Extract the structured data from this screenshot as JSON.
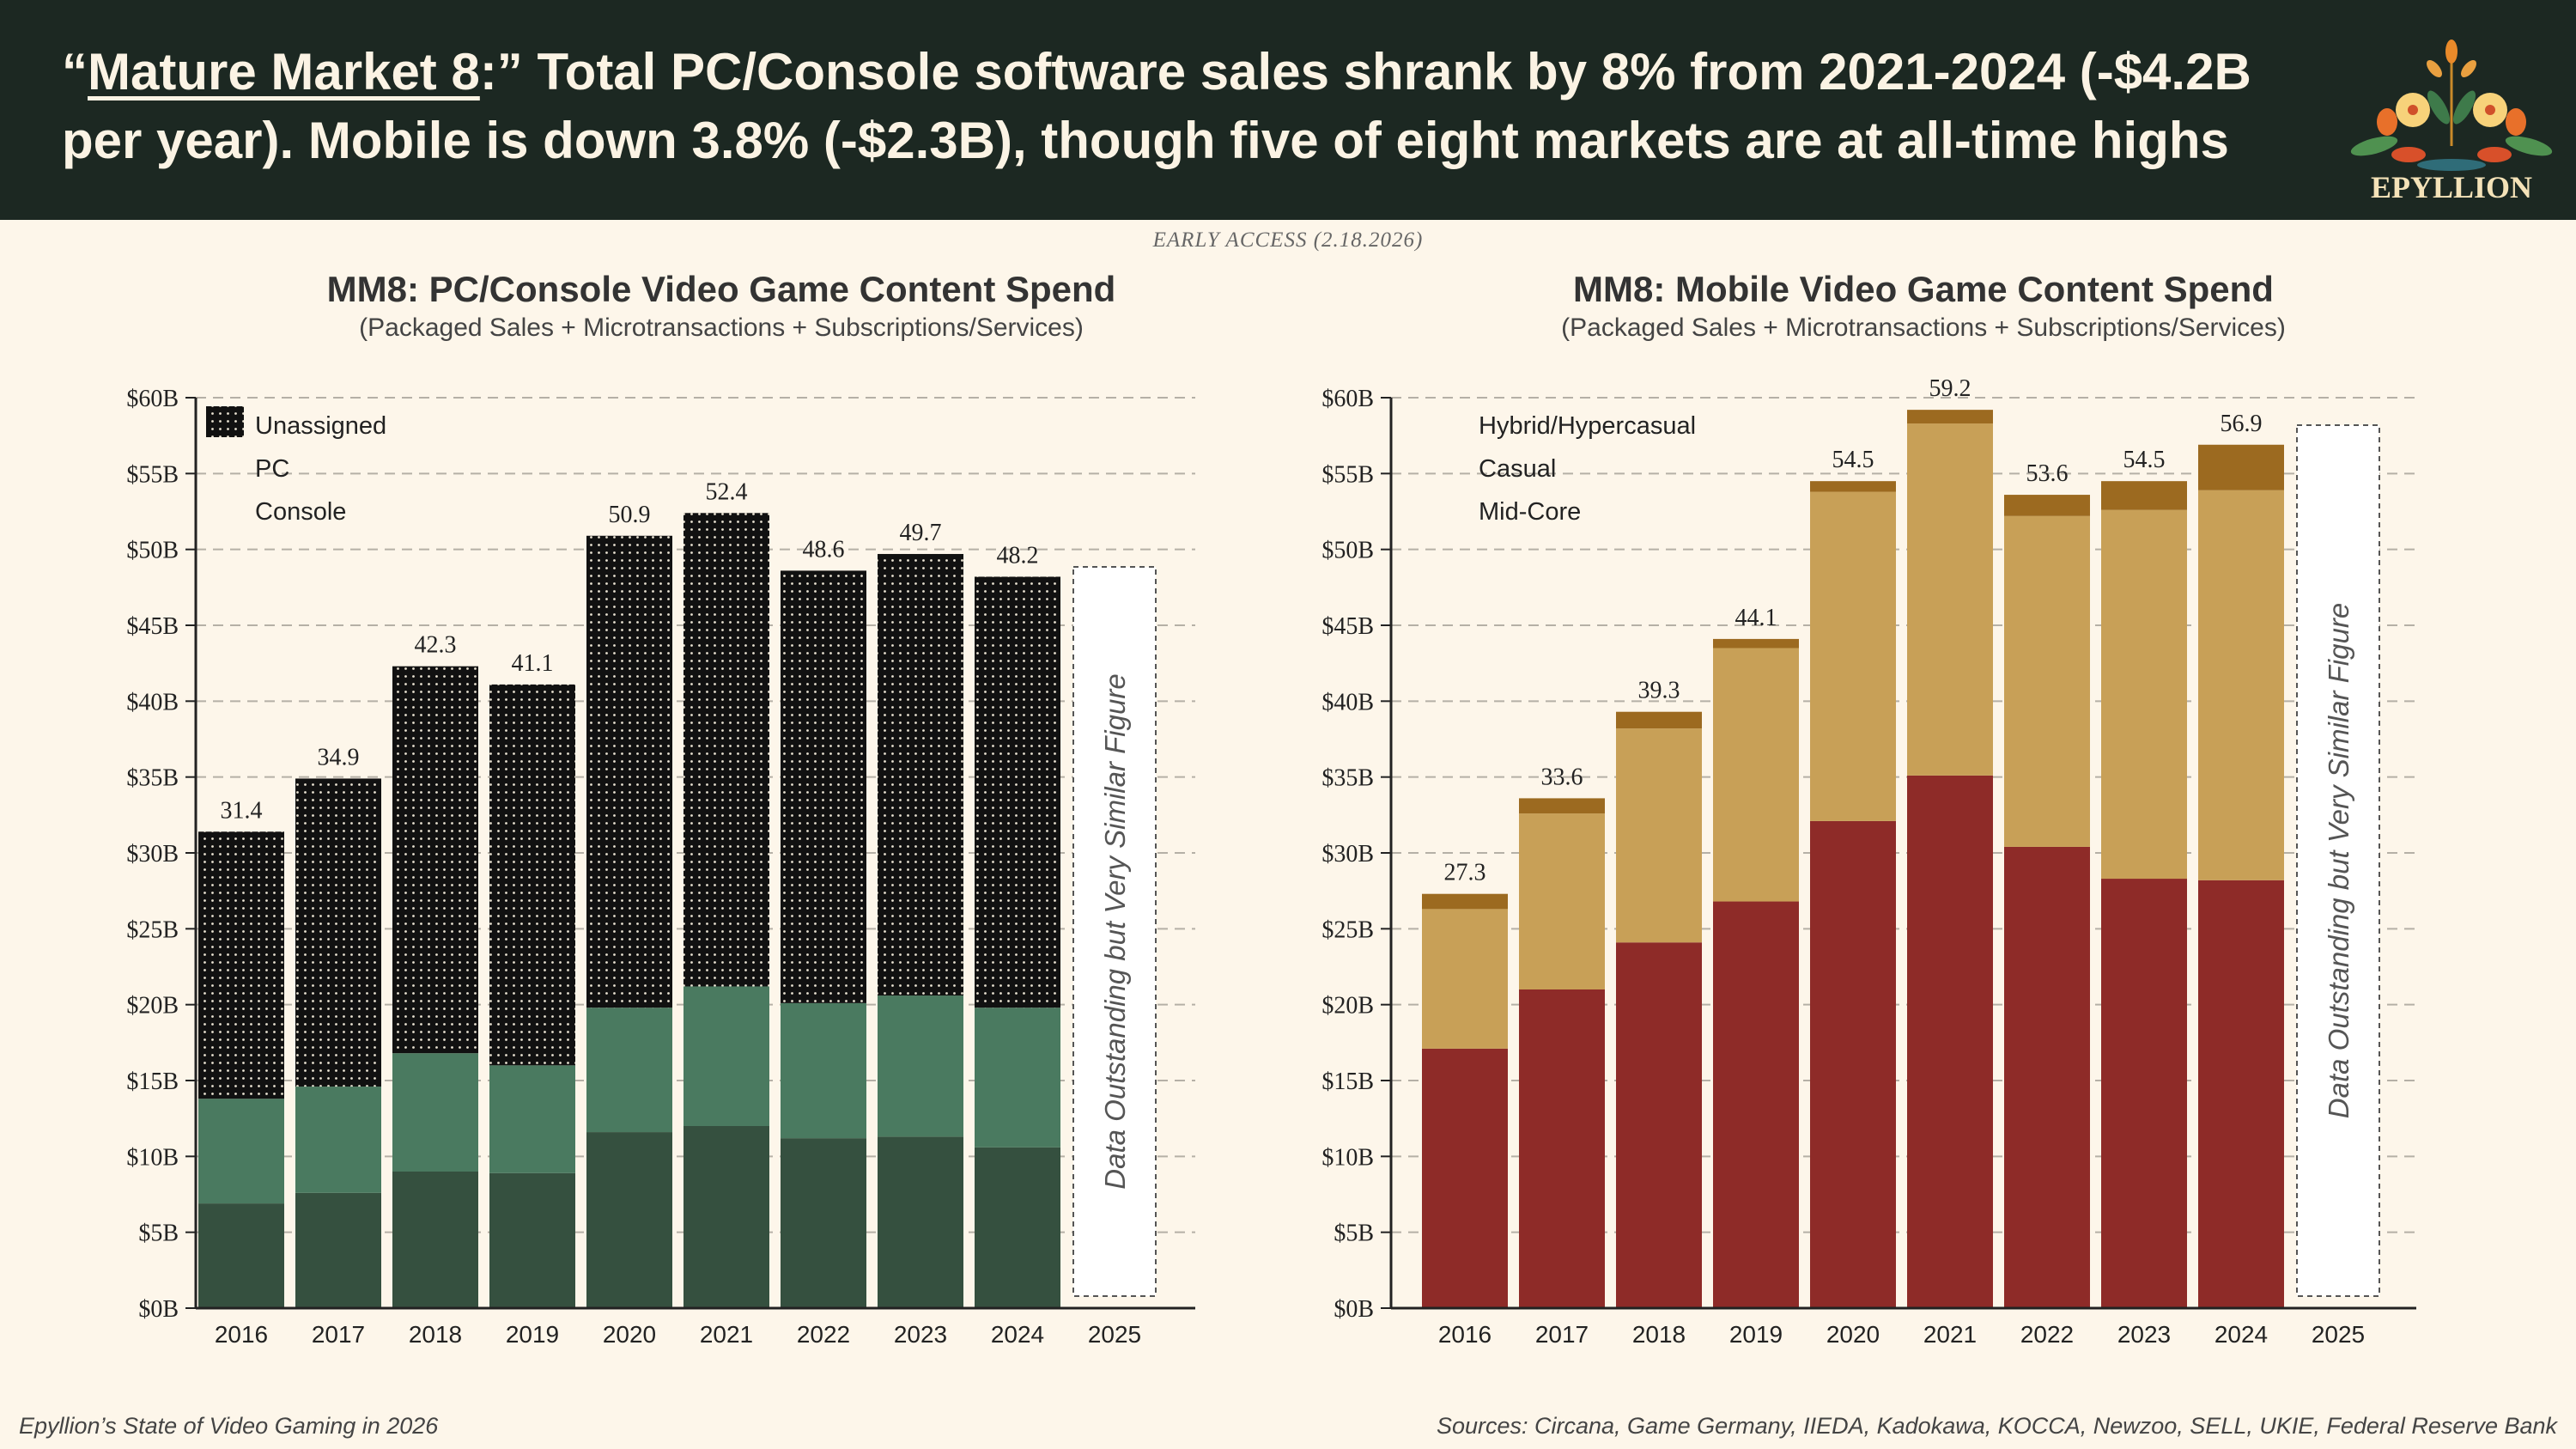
{
  "header": {
    "title_quote_open": "“",
    "title_underlined": "Mature Market 8",
    "title_rest": ":” Total PC/Console software sales shrank by 8% from 2021-2024 (-$4.2B per year). Mobile is down 3.8% (-$2.3B), though five of eight markets are at all-time highs",
    "logo_text": "EPYLLION"
  },
  "early_access": "EARLY ACCESS (2.18.2026)",
  "footer": {
    "left": "Epyllion’s State of Video Gaming in 2026",
    "right": "Sources: Circana, Game Germany, IIEDA, Kadokawa, KOCCA, Newzoo, SELL, UKIE, Federal Reserve Bank"
  },
  "chart_data": [
    {
      "type": "bar",
      "stacked": true,
      "title": "MM8: PC/Console Video Game Content Spend",
      "subtitle": "(Packaged Sales + Microtransactions + Subscriptions/Services)",
      "categories": [
        "2016",
        "2017",
        "2018",
        "2019",
        "2020",
        "2021",
        "2022",
        "2023",
        "2024",
        "2025"
      ],
      "series": [
        {
          "name": "Console",
          "color": "#35503f",
          "values": [
            6.9,
            7.6,
            9.0,
            8.9,
            11.6,
            12.0,
            11.2,
            11.3,
            10.6,
            null
          ]
        },
        {
          "name": "PC",
          "color": "#4a7a60",
          "values": [
            6.9,
            7.0,
            7.8,
            7.1,
            8.2,
            9.2,
            8.9,
            9.3,
            9.2,
            null
          ]
        },
        {
          "name": "Unassigned",
          "color": "#111111",
          "pattern": "dotted",
          "values": [
            17.6,
            20.3,
            25.5,
            25.1,
            31.1,
            31.2,
            28.5,
            29.1,
            28.4,
            null
          ]
        }
      ],
      "totals": [
        "31.4",
        "34.9",
        "42.3",
        "41.1",
        "50.9",
        "52.4",
        "48.6",
        "49.7",
        "48.2"
      ],
      "legend_order": [
        "Unassigned",
        "PC",
        "Console"
      ],
      "legend_position": "top-left",
      "placeholder_note": "Data Outstanding but Very Similar Figure",
      "yticks": [
        "$0B",
        "$5B",
        "$10B",
        "$15B",
        "$20B",
        "$25B",
        "$30B",
        "$35B",
        "$40B",
        "$45B",
        "$50B",
        "$55B",
        "$60B"
      ],
      "ylim": [
        0,
        60
      ],
      "grid": true
    },
    {
      "type": "bar",
      "stacked": true,
      "title": "MM8: Mobile Video Game Content Spend",
      "subtitle": "(Packaged Sales + Microtransactions + Subscriptions/Services)",
      "categories": [
        "2016",
        "2017",
        "2018",
        "2019",
        "2020",
        "2021",
        "2022",
        "2023",
        "2024",
        "2025"
      ],
      "series": [
        {
          "name": "Mid-Core",
          "color": "#8e2b28",
          "values": [
            17.1,
            21.0,
            24.1,
            26.8,
            32.1,
            35.1,
            30.4,
            28.3,
            28.2,
            null
          ]
        },
        {
          "name": "Casual",
          "color": "#c8a057",
          "values": [
            9.2,
            11.6,
            14.1,
            16.7,
            21.7,
            23.2,
            21.8,
            24.3,
            25.7,
            null
          ]
        },
        {
          "name": "Hybrid/Hypercasual",
          "color": "#9c6a20",
          "values": [
            1.0,
            1.0,
            1.1,
            0.6,
            0.7,
            0.9,
            1.4,
            1.9,
            3.0,
            null
          ]
        }
      ],
      "totals": [
        "27.3",
        "33.6",
        "39.3",
        "44.1",
        "54.5",
        "59.2",
        "53.6",
        "54.5",
        "56.9"
      ],
      "legend_order": [
        "Hybrid/Hypercasual",
        "Casual",
        "Mid-Core"
      ],
      "legend_position": "top-left",
      "placeholder_note": "Data Outstanding but Very Similar Figure",
      "yticks": [
        "$0B",
        "$5B",
        "$10B",
        "$15B",
        "$20B",
        "$25B",
        "$30B",
        "$35B",
        "$40B",
        "$45B",
        "$50B",
        "$55B",
        "$60B"
      ],
      "ylim": [
        0,
        60
      ],
      "grid": true
    }
  ]
}
